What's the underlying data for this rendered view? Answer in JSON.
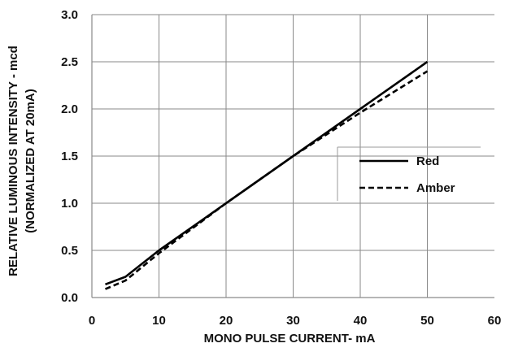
{
  "chart_data": {
    "type": "line",
    "title": "",
    "xlabel": "MONO PULSE CURRENT- mA",
    "ylabel_line1": "RELATIVE LUMINOUS INTENSITY - mcd",
    "ylabel_line2": "(NORMALIZED AT 20mA)",
    "xlim": [
      0,
      60
    ],
    "ylim": [
      0.0,
      3.0
    ],
    "x_ticks": [
      "0",
      "10",
      "20",
      "30",
      "40",
      "50",
      "60"
    ],
    "y_ticks": [
      "0.0",
      "0.5",
      "1.0",
      "1.5",
      "2.0",
      "2.5",
      "3.0"
    ],
    "grid": true,
    "legend_position": "right",
    "series": [
      {
        "name": "Red",
        "style": "solid",
        "color": "#000000",
        "x": [
          2,
          5,
          10,
          20,
          30,
          40,
          50
        ],
        "y": [
          0.14,
          0.22,
          0.5,
          1.0,
          1.5,
          2.0,
          2.5
        ]
      },
      {
        "name": "Amber",
        "style": "dashed",
        "color": "#000000",
        "x": [
          2,
          5,
          10,
          20,
          30,
          40,
          50
        ],
        "y": [
          0.09,
          0.18,
          0.47,
          1.0,
          1.5,
          1.96,
          2.4
        ]
      }
    ]
  }
}
